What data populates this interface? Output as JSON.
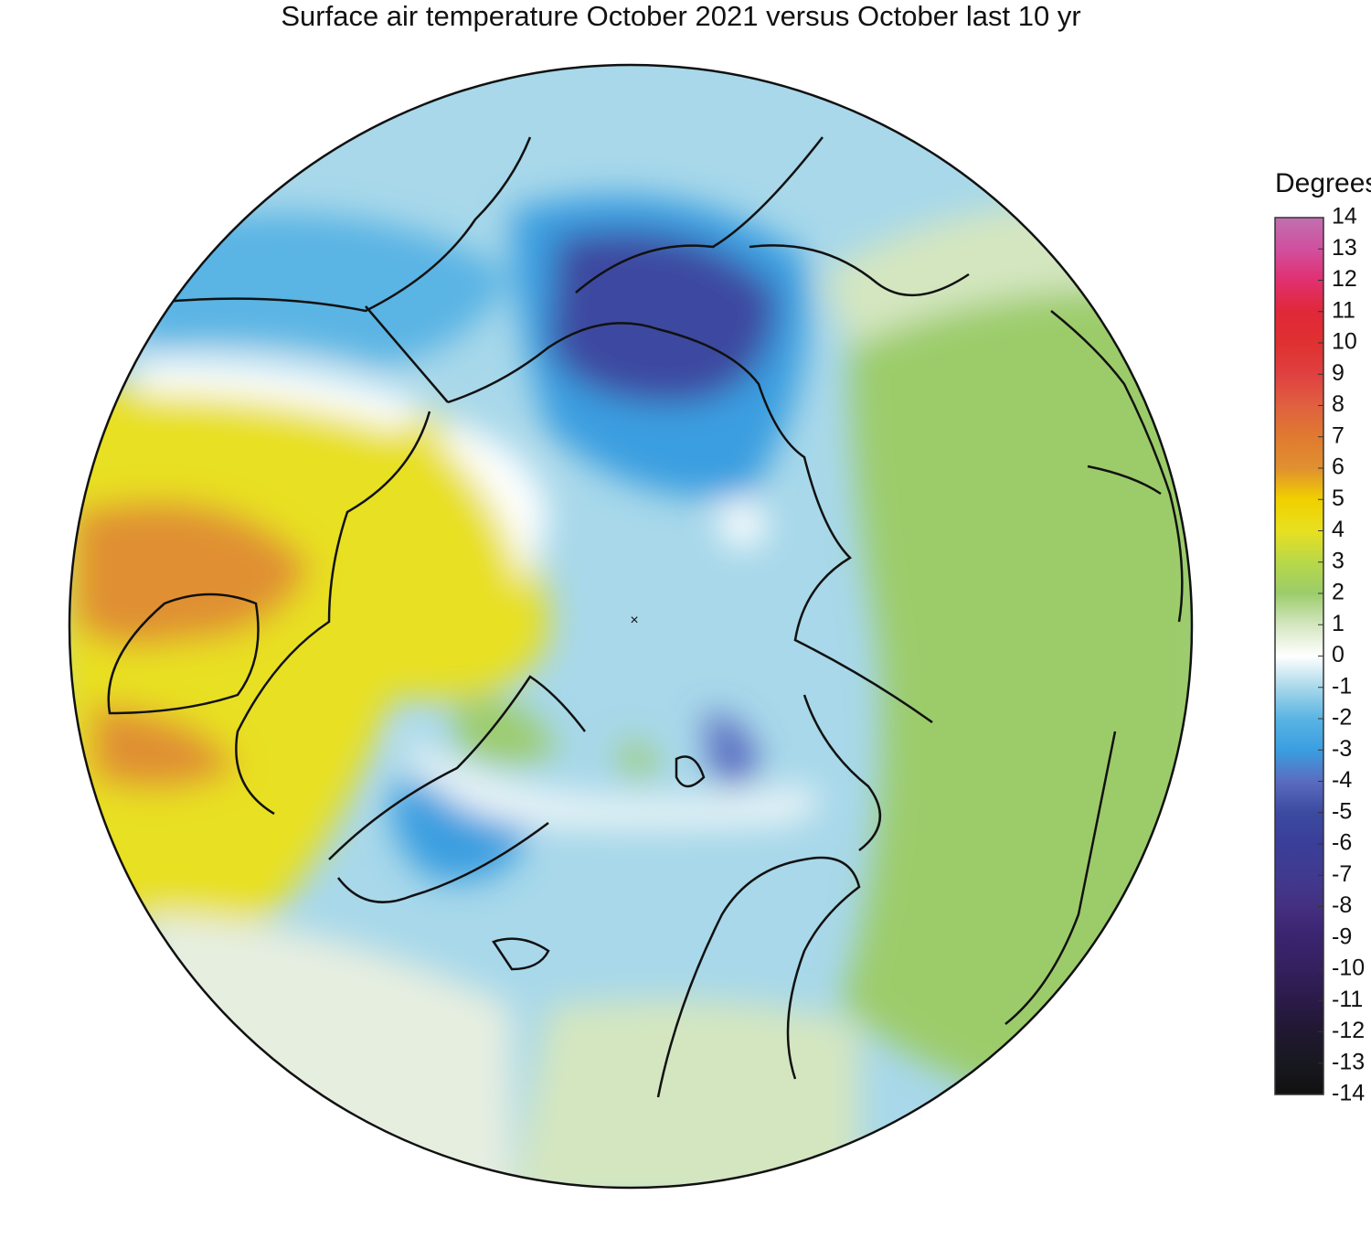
{
  "title": "Surface air temperature October 2021 versus October last 10 yr",
  "colorbar": {
    "label": "Degrees C",
    "ticks": [
      14,
      13,
      12,
      11,
      10,
      9,
      8,
      7,
      6,
      5,
      4,
      3,
      2,
      1,
      0,
      -1,
      -2,
      -3,
      -4,
      -5,
      -6,
      -7,
      -8,
      -9,
      -10,
      -11,
      -12,
      -13,
      -14
    ],
    "colors": [
      "#c070b0",
      "#d050a0",
      "#e03070",
      "#e02838",
      "#e03030",
      "#e04040",
      "#e06040",
      "#e07a30",
      "#e09030",
      "#f0d000",
      "#e8e020",
      "#b8d848",
      "#9ccc6a",
      "#d4e6c0",
      "#ffffff",
      "#a8d8ea",
      "#5ab4e4",
      "#3a9ee0",
      "#5a6cc0",
      "#3c4aa0",
      "#3a3e98",
      "#403a90",
      "#443080",
      "#3a2470",
      "#34205e",
      "#2a1a48",
      "#201830",
      "#181820",
      "#111111"
    ]
  }
}
